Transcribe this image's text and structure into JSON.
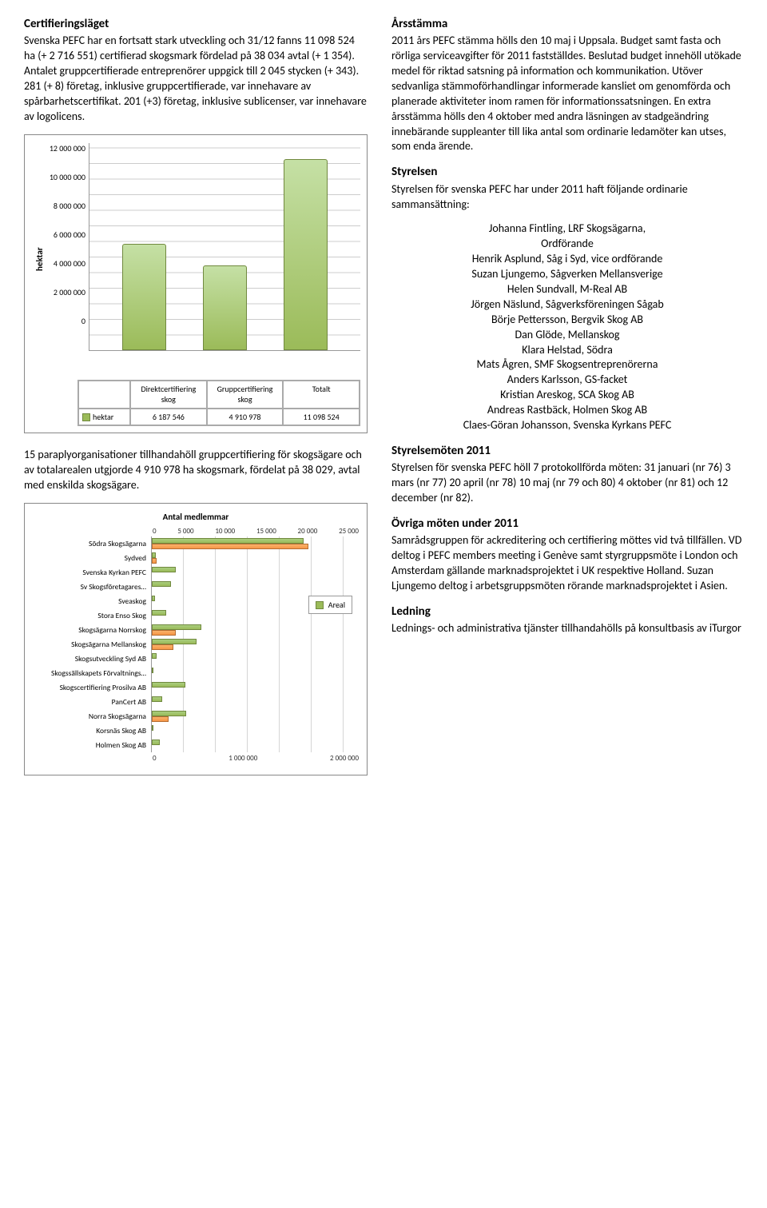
{
  "left": {
    "h1": "Certifieringsläget",
    "p1": "Svenska PEFC har en fortsatt stark utveckling och 31/12 fanns 11 098 524 ha (+ 2 716 551) certifierad skogsmark fördelad på 38 034 avtal (+ 1 354). Antalet gruppcertifierade entreprenörer uppgick till 2 045 stycken (+ 343). 281 (+ 8) företag, inklusive gruppcertifierade, var innehavare av spårbarhetscertifikat. 201 (+3) företag, inklusive sublicenser, var innehavare av logolicens.",
    "chart1": {
      "ylabel": "hektar",
      "ymax": 12000000,
      "ytick_step": 2000000,
      "yticks": [
        "12 000 000",
        "10 000 000",
        "8 000 000",
        "6 000 000",
        "4 000 000",
        "2 000 000",
        "0"
      ],
      "categories": [
        "Direktcertifiering skog",
        "Gruppcertifiering skog",
        "Totalt"
      ],
      "values": [
        6187546,
        4910978,
        11098524
      ],
      "value_labels": [
        "6 187 546",
        "4 910 978",
        "11 098 524"
      ],
      "legend_label": "hektar",
      "bar_color": "#9bbb59",
      "border_color": "#71893f",
      "grid_color": "#cccccc"
    },
    "p2": "15 paraplyorganisationer tillhandahöll gruppcertifiering för skogsägare och av totalarealen utgjorde 4 910 978 ha skogsmark, fördelat på 38 029, avtal med enskilda skogsägare.",
    "chart2": {
      "title": "Antal medlemmar",
      "top_axis": [
        "0",
        "5 000",
        "10 000",
        "15 000",
        "20 000",
        "25 000"
      ],
      "top_max": 25000,
      "bottom_axis": [
        "0",
        "1 000 000",
        "2 000 000"
      ],
      "bottom_max": 2000000,
      "legend": "Areal",
      "areal_color": "#9bbb59",
      "members_color": "#f79646",
      "categories": [
        {
          "name": "Södra Skogsägarna",
          "areal": 1900000,
          "members": 24500
        },
        {
          "name": "Sydved",
          "areal": 50000,
          "members": 700
        },
        {
          "name": "Svenska Kyrkan PEFC",
          "areal": 300000,
          "members": 0
        },
        {
          "name": "Sv Skogsföretagares…",
          "areal": 240000,
          "members": 0
        },
        {
          "name": "Sveaskog",
          "areal": 40000,
          "members": 0
        },
        {
          "name": "Stora Enso Skog",
          "areal": 180000,
          "members": 0
        },
        {
          "name": "Skogsägarna Norrskog",
          "areal": 620000,
          "members": 3800
        },
        {
          "name": "Skogsägarna Mellanskog",
          "areal": 560000,
          "members": 3400
        },
        {
          "name": "Skogsutveckling Syd AB",
          "areal": 60000,
          "members": 0
        },
        {
          "name": "Skogssällskapets Förvaltnings…",
          "areal": 20000,
          "members": 0
        },
        {
          "name": "Skogscertifiering Prosilva AB",
          "areal": 420000,
          "members": 0
        },
        {
          "name": "PanCert AB",
          "areal": 130000,
          "members": 0
        },
        {
          "name": "Norra Skogsägarna",
          "areal": 430000,
          "members": 2600
        },
        {
          "name": "Korsnäs Skog AB",
          "areal": 20000,
          "members": 0
        },
        {
          "name": "Holmen Skog AB",
          "areal": 100000,
          "members": 0
        }
      ]
    }
  },
  "right": {
    "h1": "Årsstämma",
    "p1": "2011 års PEFC stämma hölls den 10 maj i Uppsala. Budget samt fasta och rörliga serviceavgifter för 2011 fastställdes. Beslutad budget innehöll utökade medel för riktad satsning på information och kommunikation. Utöver sedvanliga stämmoförhandlingar informerade kansliet om genomförda och planerade aktiviteter inom ramen för informationssatsningen. En extra årsstämma hölls den 4 oktober med andra läsningen av stadgeändring innebärande suppleanter till lika antal som ordinarie ledamöter kan utses, som enda ärende.",
    "h2": "Styrelsen",
    "p2": "Styrelsen för svenska PEFC har under 2011 haft följande ordinarie sammansättning:",
    "board": [
      "Johanna Fintling, LRF Skogsägarna,",
      "Ordförande",
      "Henrik Asplund, Såg i Syd, vice ordförande",
      "Suzan Ljungemo, Sågverken Mellansverige",
      "Helen Sundvall, M-Real AB",
      "Jörgen Näslund, Sågverksföreningen Sågab",
      "Börje Pettersson, Bergvik Skog AB",
      "Dan Glöde, Mellanskog",
      "Klara Helstad, Södra",
      "Mats Ågren, SMF Skogsentreprenörerna",
      "Anders Karlsson, GS-facket",
      "Kristian Areskog, SCA Skog AB",
      "Andreas Rastbäck, Holmen Skog AB",
      "Claes-Göran Johansson, Svenska Kyrkans PEFC"
    ],
    "h3": "Styrelsemöten 2011",
    "p3": "Styrelsen för svenska PEFC höll 7 protokollförda möten: 31 januari (nr 76) 3 mars (nr 77) 20 april (nr 78) 10 maj (nr 79 och 80) 4 oktober (nr 81) och 12 december (nr 82).",
    "h4": "Övriga möten under 2011",
    "p4": "Samrådsgruppen för ackreditering och certifiering möttes vid två tillfällen. VD deltog i PEFC members meeting i Genève samt styrgruppsmöte i London och Amsterdam gällande marknadsprojektet i UK respektive Holland. Suzan Ljungemo deltog i arbetsgruppsmöten rörande marknadsprojektet i Asien.",
    "h5": "Ledning",
    "p5": "Lednings- och administrativa tjänster tillhandahölls på konsultbasis av iTurgor"
  }
}
